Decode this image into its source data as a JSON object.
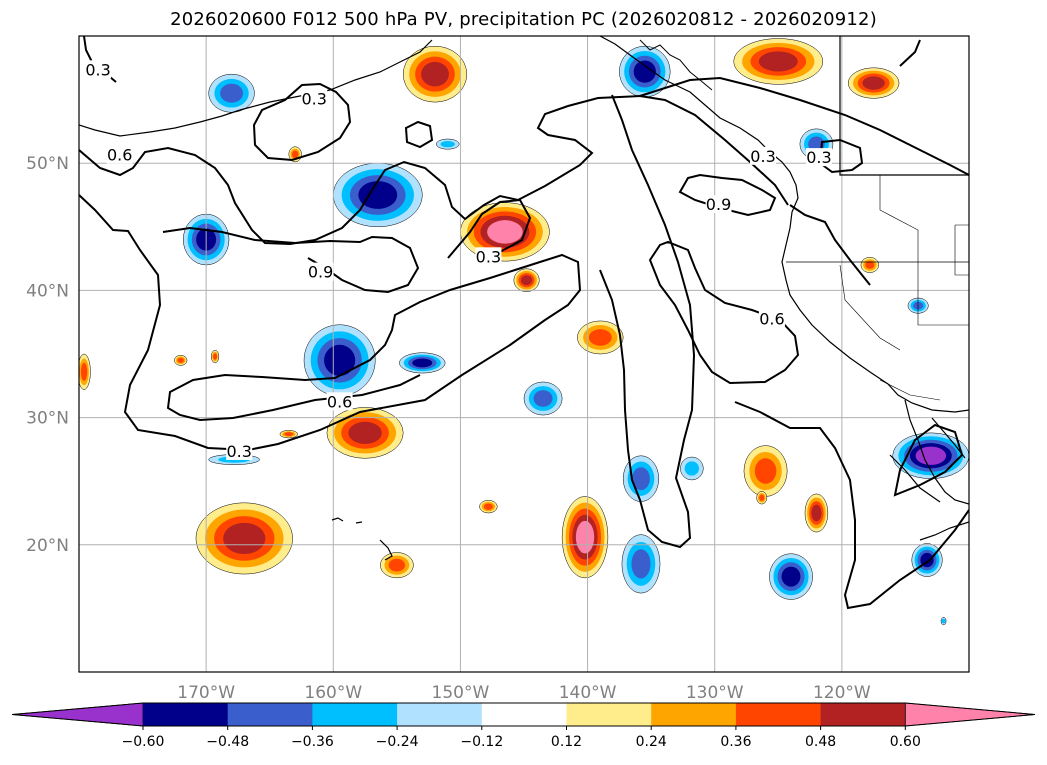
{
  "chart_data": {
    "type": "map-contour",
    "title": "2026020600 F012 500 hPa PV, precipitation PC (2026020812 - 2026020912)",
    "x_ticks": [
      {
        "lon": -170,
        "label": "170°W"
      },
      {
        "lon": -160,
        "label": "160°W"
      },
      {
        "lon": -150,
        "label": "150°W"
      },
      {
        "lon": -140,
        "label": "140°W"
      },
      {
        "lon": -130,
        "label": "130°W"
      },
      {
        "lon": -120,
        "label": "120°W"
      }
    ],
    "y_ticks": [
      {
        "lat": 50,
        "label": "50°N"
      },
      {
        "lat": 40,
        "label": "40°N"
      },
      {
        "lat": 30,
        "label": "30°N"
      },
      {
        "lat": 20,
        "label": "20°N"
      }
    ],
    "contour_levels": [
      "0.3",
      "0.6",
      "0.9"
    ],
    "contour_labels": [
      {
        "text": "0.3",
        "lon": -178.5,
        "lat": 57.3
      },
      {
        "text": "0.3",
        "lon": -161.5,
        "lat": 55.0
      },
      {
        "text": "0.6",
        "lon": -176.8,
        "lat": 50.6
      },
      {
        "text": "0.9",
        "lon": -161.0,
        "lat": 41.4
      },
      {
        "text": "0.3",
        "lon": -147.8,
        "lat": 42.6
      },
      {
        "text": "0.9",
        "lon": -129.7,
        "lat": 46.7
      },
      {
        "text": "0.3",
        "lon": -126.2,
        "lat": 50.5
      },
      {
        "text": "0.3",
        "lon": -121.8,
        "lat": 50.4
      },
      {
        "text": "0.6",
        "lon": -125.5,
        "lat": 37.7
      },
      {
        "text": "0.6",
        "lon": -159.5,
        "lat": 31.2
      },
      {
        "text": "0.3",
        "lon": -167.4,
        "lat": 27.3
      }
    ],
    "colorbar": {
      "ticks": [
        "−0.60",
        "−0.48",
        "−0.36",
        "−0.24",
        "−0.12",
        "0.12",
        "0.24",
        "0.36",
        "0.48",
        "0.60"
      ],
      "colors": [
        "#9932cc",
        "#00008b",
        "#3a5fcd",
        "#00bfff",
        "#b0e2ff",
        "#ffffff",
        "#ffec8b",
        "#ffa500",
        "#ff4500",
        "#b22222",
        "#ff82ab"
      ],
      "extend": "both"
    },
    "precip_blobs": [
      {
        "lon": -152.0,
        "lat": 57.0,
        "rx": 2.5,
        "ry": 2.2,
        "value": 0.48
      },
      {
        "lon": -135.5,
        "lat": 57.2,
        "rx": 2.0,
        "ry": 2.0,
        "value": -0.48
      },
      {
        "lon": -125.0,
        "lat": 58.0,
        "rx": 3.5,
        "ry": 1.8,
        "value": 0.48
      },
      {
        "lon": -117.5,
        "lat": 56.3,
        "rx": 2.0,
        "ry": 1.2,
        "value": 0.48
      },
      {
        "lon": -168.0,
        "lat": 55.5,
        "rx": 1.8,
        "ry": 1.5,
        "value": -0.36
      },
      {
        "lon": -163.0,
        "lat": 50.7,
        "rx": 0.5,
        "ry": 0.6,
        "value": 0.36
      },
      {
        "lon": -151.0,
        "lat": 51.5,
        "rx": 0.9,
        "ry": 0.4,
        "value": -0.24
      },
      {
        "lon": -122.0,
        "lat": 51.5,
        "rx": 1.3,
        "ry": 1.2,
        "value": -0.36
      },
      {
        "lon": -156.5,
        "lat": 47.5,
        "rx": 3.5,
        "ry": 2.5,
        "value": -0.48
      },
      {
        "lon": -146.5,
        "lat": 44.6,
        "rx": 3.5,
        "ry": 2.3,
        "value": 0.6
      },
      {
        "lon": -170.0,
        "lat": 44.0,
        "rx": 1.8,
        "ry": 2.0,
        "value": -0.48
      },
      {
        "lon": -144.8,
        "lat": 40.8,
        "rx": 1.0,
        "ry": 0.9,
        "value": 0.48
      },
      {
        "lon": -117.8,
        "lat": 42.0,
        "rx": 0.7,
        "ry": 0.6,
        "value": 0.36
      },
      {
        "lon": -114.0,
        "lat": 38.8,
        "rx": 0.8,
        "ry": 0.6,
        "value": -0.36
      },
      {
        "lon": -159.5,
        "lat": 34.5,
        "rx": 2.8,
        "ry": 2.8,
        "value": -0.48
      },
      {
        "lon": -153.0,
        "lat": 34.3,
        "rx": 1.8,
        "ry": 0.8,
        "value": -0.48
      },
      {
        "lon": -139.0,
        "lat": 36.3,
        "rx": 1.8,
        "ry": 1.3,
        "value": 0.36
      },
      {
        "lon": -179.6,
        "lat": 33.6,
        "rx": 0.5,
        "ry": 1.4,
        "value": 0.36
      },
      {
        "lon": -172.0,
        "lat": 34.5,
        "rx": 0.5,
        "ry": 0.4,
        "value": 0.36
      },
      {
        "lon": -169.3,
        "lat": 34.8,
        "rx": 0.3,
        "ry": 0.5,
        "value": 0.36
      },
      {
        "lon": -143.5,
        "lat": 31.5,
        "rx": 1.5,
        "ry": 1.3,
        "value": -0.36
      },
      {
        "lon": -157.5,
        "lat": 28.8,
        "rx": 3.0,
        "ry": 2.0,
        "value": 0.48
      },
      {
        "lon": -167.8,
        "lat": 26.7,
        "rx": 2.0,
        "ry": 0.4,
        "value": -0.24
      },
      {
        "lon": -163.5,
        "lat": 28.7,
        "rx": 0.7,
        "ry": 0.3,
        "value": 0.36
      },
      {
        "lon": -135.8,
        "lat": 25.2,
        "rx": 1.4,
        "ry": 1.8,
        "value": -0.36
      },
      {
        "lon": -131.8,
        "lat": 26.0,
        "rx": 0.9,
        "ry": 0.9,
        "value": -0.24
      },
      {
        "lon": -126.0,
        "lat": 25.8,
        "rx": 1.7,
        "ry": 2.0,
        "value": 0.36
      },
      {
        "lon": -126.3,
        "lat": 23.7,
        "rx": 0.4,
        "ry": 0.5,
        "value": 0.36
      },
      {
        "lon": -122.0,
        "lat": 22.5,
        "rx": 0.9,
        "ry": 1.5,
        "value": 0.48
      },
      {
        "lon": -113.0,
        "lat": 27.0,
        "rx": 3.0,
        "ry": 1.8,
        "value": -0.6
      },
      {
        "lon": -113.3,
        "lat": 18.8,
        "rx": 1.2,
        "ry": 1.3,
        "value": -0.48
      },
      {
        "lon": -124.0,
        "lat": 17.5,
        "rx": 1.7,
        "ry": 1.8,
        "value": -0.48
      },
      {
        "lon": -135.8,
        "lat": 18.5,
        "rx": 1.5,
        "ry": 2.3,
        "value": -0.36
      },
      {
        "lon": -140.2,
        "lat": 20.6,
        "rx": 1.8,
        "ry": 3.2,
        "value": 0.6
      },
      {
        "lon": -167.0,
        "lat": 20.5,
        "rx": 3.8,
        "ry": 2.8,
        "value": 0.48
      },
      {
        "lon": -155.0,
        "lat": 18.4,
        "rx": 1.3,
        "ry": 1.0,
        "value": 0.36
      },
      {
        "lon": -147.8,
        "lat": 23.0,
        "rx": 0.7,
        "ry": 0.5,
        "value": 0.36
      },
      {
        "lon": -112.0,
        "lat": 14.0,
        "rx": 0.2,
        "ry": 0.3,
        "value": -0.24
      }
    ]
  }
}
